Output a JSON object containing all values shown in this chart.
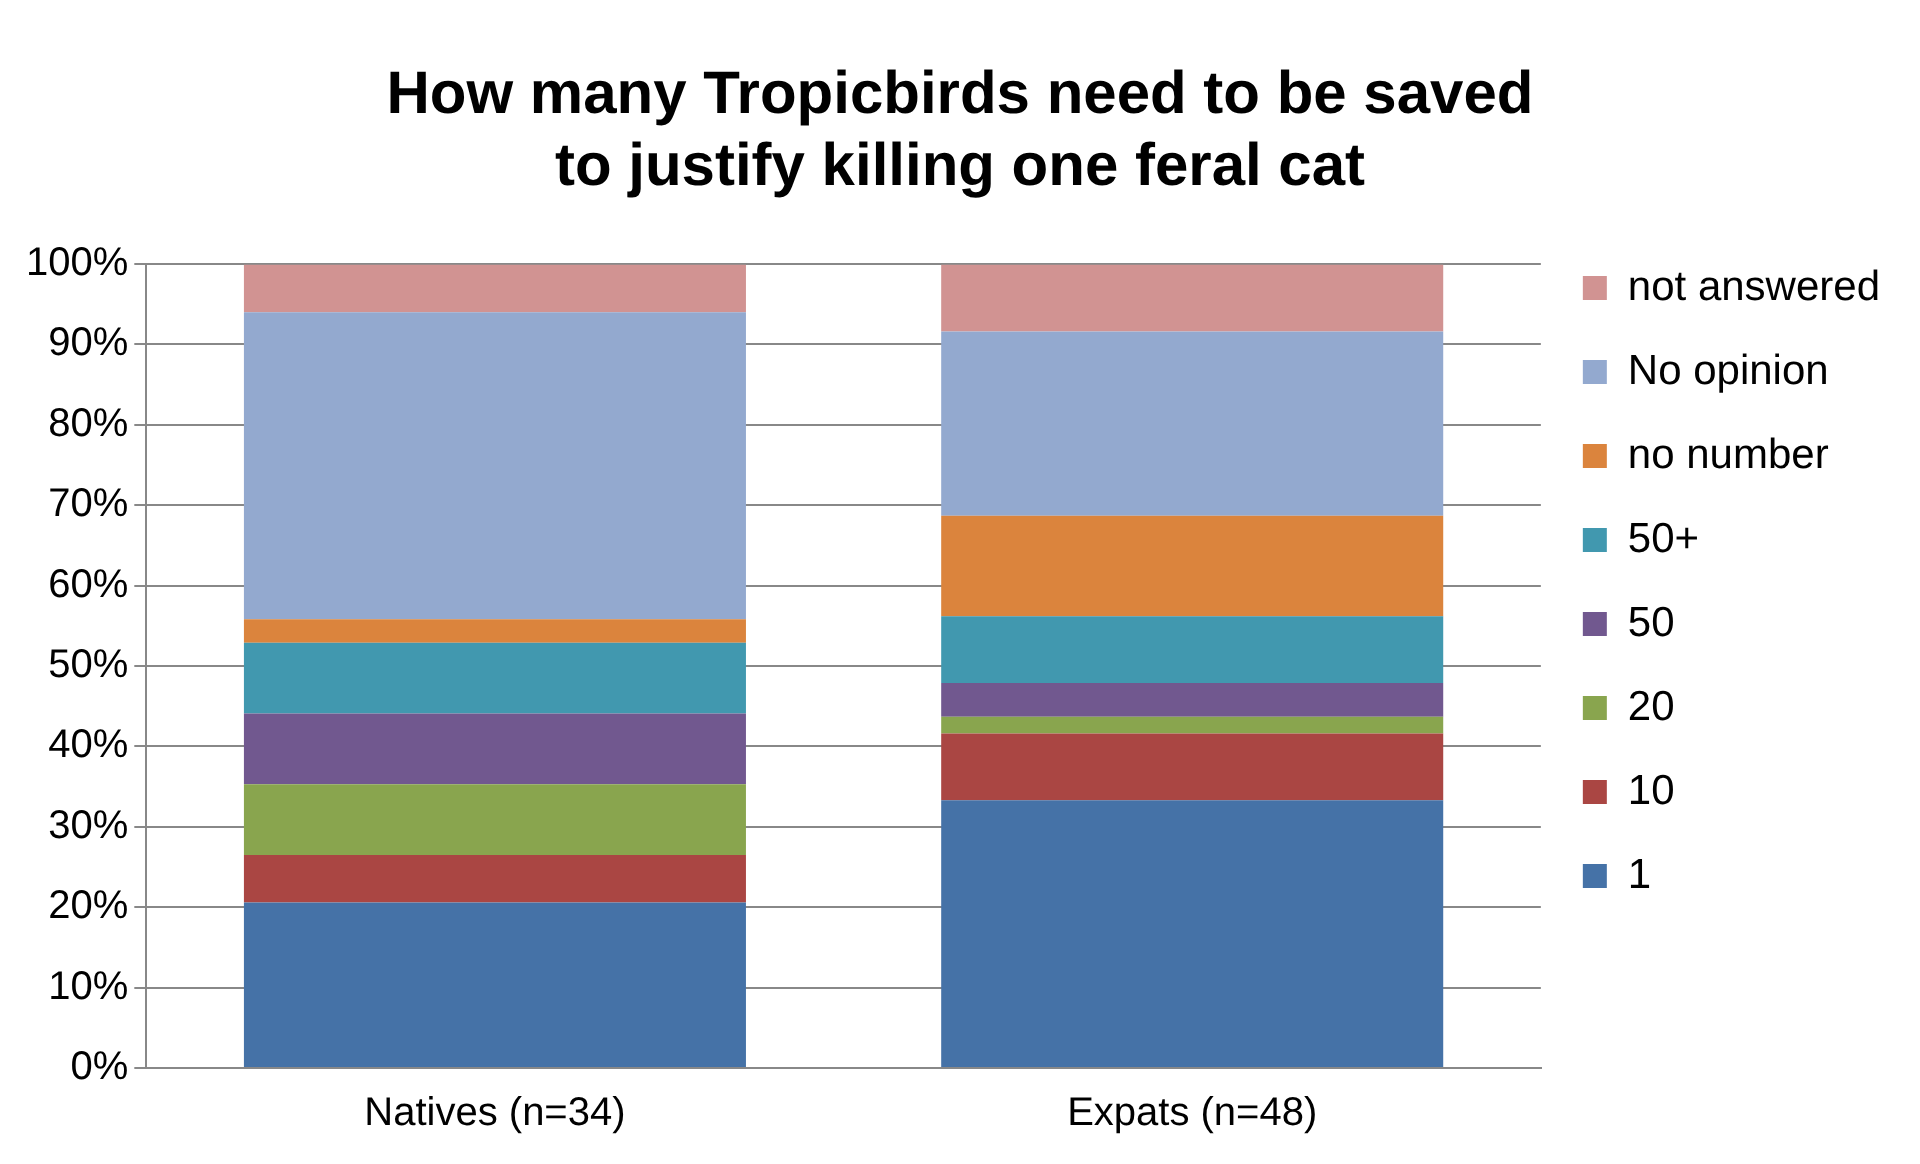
{
  "chart_data": {
    "type": "bar",
    "title": "How many Tropicbirds need to be saved to justify killing one feral cat",
    "categories": [
      "Natives (n=34)",
      "Expats (n=48)"
    ],
    "stacked": true,
    "legend": "right",
    "grid": "y",
    "ylim": [
      0,
      100
    ],
    "yticks": [
      {
        "value": 0,
        "label": "0%"
      },
      {
        "value": 10,
        "label": "10%"
      },
      {
        "value": 20,
        "label": "20%"
      },
      {
        "value": 30,
        "label": "30%"
      },
      {
        "value": 40,
        "label": "40%"
      },
      {
        "value": 50,
        "label": "50%"
      },
      {
        "value": 60,
        "label": "60%"
      },
      {
        "value": 70,
        "label": "70%"
      },
      {
        "value": 80,
        "label": "80%"
      },
      {
        "value": 90,
        "label": "90%"
      },
      {
        "value": 100,
        "label": "100%"
      }
    ],
    "series": [
      {
        "name": "1",
        "color": "#4572a7",
        "values": [
          20.6,
          33.3
        ]
      },
      {
        "name": "10",
        "color": "#aa4643",
        "values": [
          5.9,
          8.3
        ]
      },
      {
        "name": "20",
        "color": "#89a54e",
        "values": [
          8.8,
          2.1
        ]
      },
      {
        "name": "50",
        "color": "#71588f",
        "values": [
          8.8,
          4.2
        ]
      },
      {
        "name": "50+",
        "color": "#4198af",
        "values": [
          8.8,
          8.3
        ]
      },
      {
        "name": "no number",
        "color": "#db843d",
        "values": [
          2.9,
          12.5
        ]
      },
      {
        "name": "No opinion",
        "color": "#93a9cf",
        "values": [
          38.2,
          22.9
        ]
      },
      {
        "name": "not answered",
        "color": "#d19392",
        "values": [
          5.9,
          8.3
        ]
      }
    ]
  }
}
